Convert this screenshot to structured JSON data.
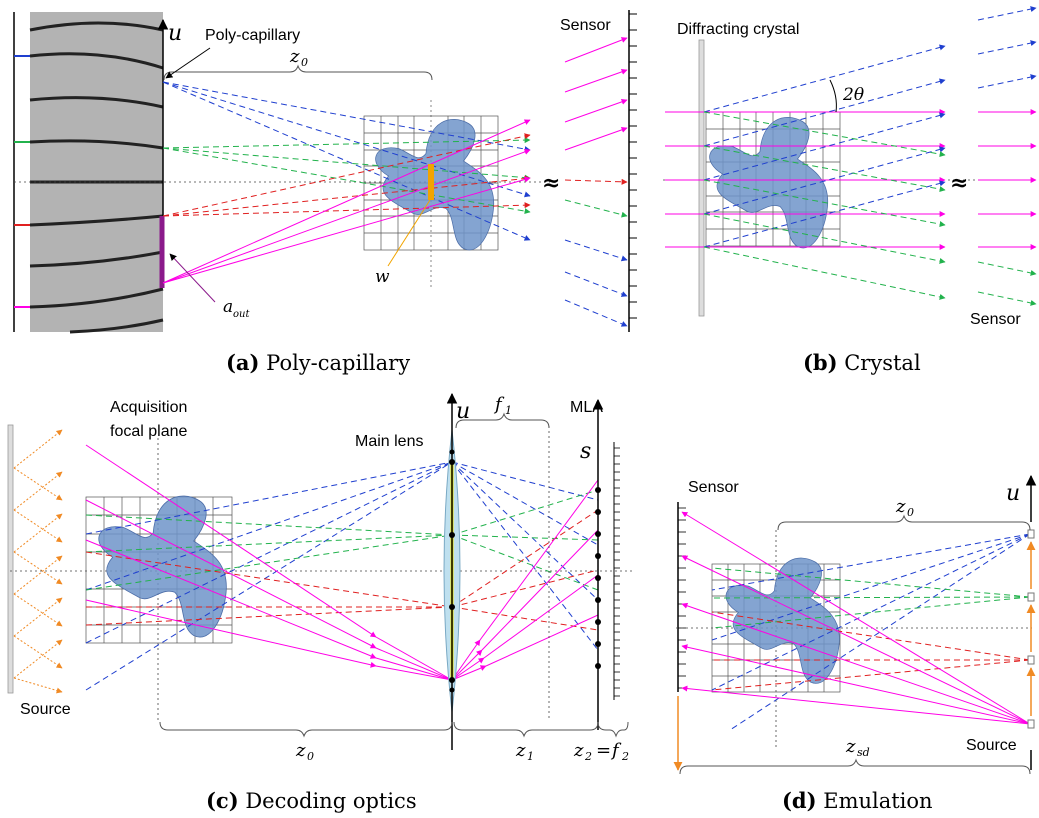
{
  "panel_a": {
    "caption_letter": "(a)",
    "caption_text": " Poly-capillary",
    "label_polycapillary": "Poly-capillary",
    "label_sensor": "Sensor",
    "label_u": "u",
    "label_z0": "z",
    "label_z0_sub": "0",
    "label_w": "w",
    "label_aout": "a",
    "label_aout_sub": "out",
    "break_mark": "≈"
  },
  "panel_b": {
    "caption_letter": "(b)",
    "caption_text": " Crystal",
    "label_crystal": "Diffracting crystal",
    "label_2theta": "2θ",
    "label_sensor": "Sensor",
    "break_mark": "≈"
  },
  "panel_c": {
    "caption_letter": "(c)",
    "caption_text": " Decoding optics",
    "label_acq_1": "Acquisition",
    "label_acq_2": "focal plane",
    "label_main_lens": "Main lens",
    "label_mla": "MLA",
    "label_source": "Source",
    "label_u": "u",
    "label_s": "s",
    "label_f1": "f",
    "label_f1_sub": "1",
    "label_z0": "z",
    "label_z0_sub": "0",
    "label_z1": "z",
    "label_z1_sub": "1",
    "label_z2": "z",
    "label_z2_sub": "2",
    "label_eq": "=",
    "label_f2": "f",
    "label_f2_sub": "2"
  },
  "panel_d": {
    "caption_letter": "(d)",
    "caption_text": " Emulation",
    "label_sensor": "Sensor",
    "label_source": "Source",
    "label_u": "u",
    "label_z0": "z",
    "label_z0_sub": "0",
    "label_zsd": "z",
    "label_zsd_sub": "sd"
  },
  "colors": {
    "blue": "#1f3fcf",
    "green": "#22b24c",
    "red": "#e02020",
    "magenta": "#ff00e6",
    "orange": "#f08a24",
    "object_fill": "#6f94c9",
    "capillary_gray": "#b3b3b3",
    "yellow": "#f2e600",
    "lens_fill": "#bfe0ef"
  }
}
